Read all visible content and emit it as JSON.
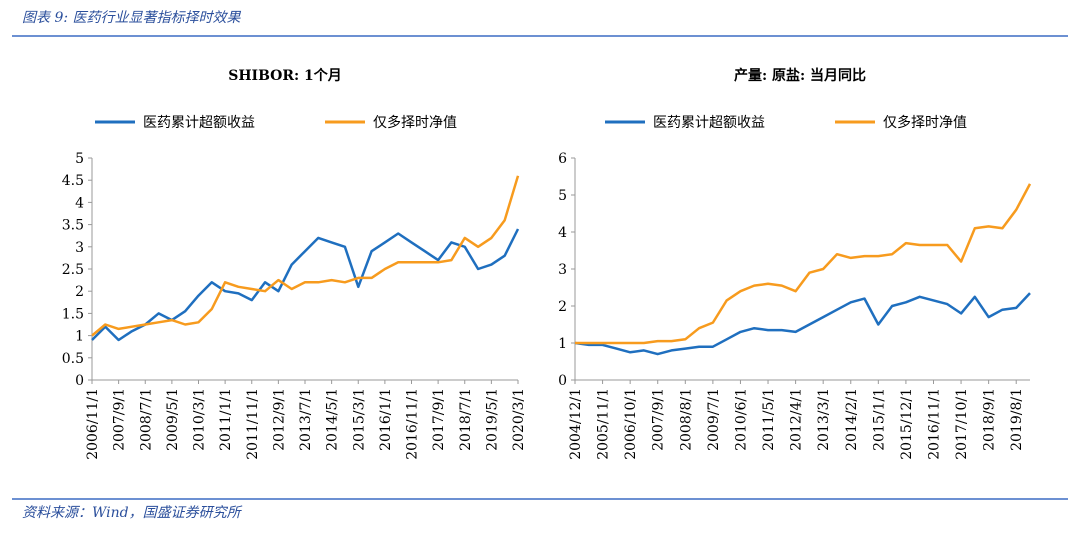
{
  "header": {
    "title": "图表 9:  医药行业显著指标择时效果"
  },
  "footer": {
    "source": "资料来源：Wind，国盛证券研究所"
  },
  "chart_data": [
    {
      "type": "line",
      "title": "SHIBOR: 1个月",
      "categories": [
        "2006/11/1",
        null,
        "2007/9/1",
        null,
        "2008/7/1",
        null,
        "2009/5/1",
        null,
        "2010/3/1",
        null,
        "2011/1/1",
        null,
        "2011/11/1",
        null,
        "2012/9/1",
        null,
        "2013/7/1",
        null,
        "2014/5/1",
        null,
        "2015/3/1",
        null,
        "2016/1/1",
        null,
        "2016/11/1",
        null,
        "2017/9/1",
        null,
        "2018/7/1",
        null,
        "2019/5/1",
        null,
        "2020/3/1"
      ],
      "series": [
        {
          "name": "医药累计超额收益",
          "color": "#1f6fbf",
          "values": [
            0.9,
            1.2,
            0.9,
            1.1,
            1.25,
            1.5,
            1.35,
            1.55,
            1.9,
            2.2,
            2.0,
            1.95,
            1.8,
            2.2,
            2.0,
            2.6,
            2.9,
            3.2,
            3.1,
            3.0,
            2.1,
            2.9,
            3.1,
            3.3,
            3.1,
            2.9,
            2.7,
            3.1,
            3.0,
            2.5,
            2.6,
            2.8,
            3.4
          ]
        },
        {
          "name": "仅多择时净值",
          "color": "#f79b1e",
          "values": [
            1.0,
            1.25,
            1.15,
            1.2,
            1.25,
            1.3,
            1.35,
            1.25,
            1.3,
            1.6,
            2.2,
            2.1,
            2.05,
            2.0,
            2.25,
            2.05,
            2.2,
            2.2,
            2.25,
            2.2,
            2.3,
            2.3,
            2.5,
            2.65,
            2.65,
            2.65,
            2.65,
            2.7,
            3.2,
            3.0,
            3.2,
            3.6,
            4.6
          ]
        }
      ],
      "ylim": [
        0,
        5
      ],
      "yticks": [
        0,
        0.5,
        1,
        1.5,
        2,
        2.5,
        3,
        3.5,
        4,
        4.5,
        5
      ]
    },
    {
      "type": "line",
      "title": "产量: 原盐: 当月同比",
      "categories": [
        "2004/12/1",
        null,
        "2005/11/1",
        null,
        "2006/10/1",
        null,
        "2007/9/1",
        null,
        "2008/8/1",
        null,
        "2009/7/1",
        null,
        "2010/6/1",
        null,
        "2011/5/1",
        null,
        "2012/4/1",
        null,
        "2013/3/1",
        null,
        "2014/2/1",
        null,
        "2015/1/1",
        null,
        "2015/12/1",
        null,
        "2016/11/1",
        null,
        "2017/10/1",
        null,
        "2018/9/1",
        null,
        "2019/8/1",
        null
      ],
      "series": [
        {
          "name": "医药累计超额收益",
          "color": "#1f6fbf",
          "values": [
            1.0,
            0.95,
            0.95,
            0.85,
            0.75,
            0.8,
            0.7,
            0.8,
            0.85,
            0.9,
            0.9,
            1.1,
            1.3,
            1.4,
            1.35,
            1.35,
            1.3,
            1.5,
            1.7,
            1.9,
            2.1,
            2.2,
            1.5,
            2.0,
            2.1,
            2.25,
            2.15,
            2.05,
            1.8,
            2.25,
            1.7,
            1.9,
            1.95,
            2.35
          ]
        },
        {
          "name": "仅多择时净值",
          "color": "#f79b1e",
          "values": [
            1.0,
            1.0,
            1.0,
            1.0,
            1.0,
            1.0,
            1.05,
            1.05,
            1.1,
            1.4,
            1.55,
            2.15,
            2.4,
            2.55,
            2.6,
            2.55,
            2.4,
            2.9,
            3.0,
            3.4,
            3.3,
            3.35,
            3.35,
            3.4,
            3.7,
            3.65,
            3.65,
            3.65,
            3.2,
            4.1,
            4.15,
            4.1,
            4.6,
            5.3
          ]
        }
      ],
      "ylim": [
        0,
        6
      ],
      "yticks": [
        0,
        1,
        2,
        3,
        4,
        5,
        6
      ]
    }
  ]
}
